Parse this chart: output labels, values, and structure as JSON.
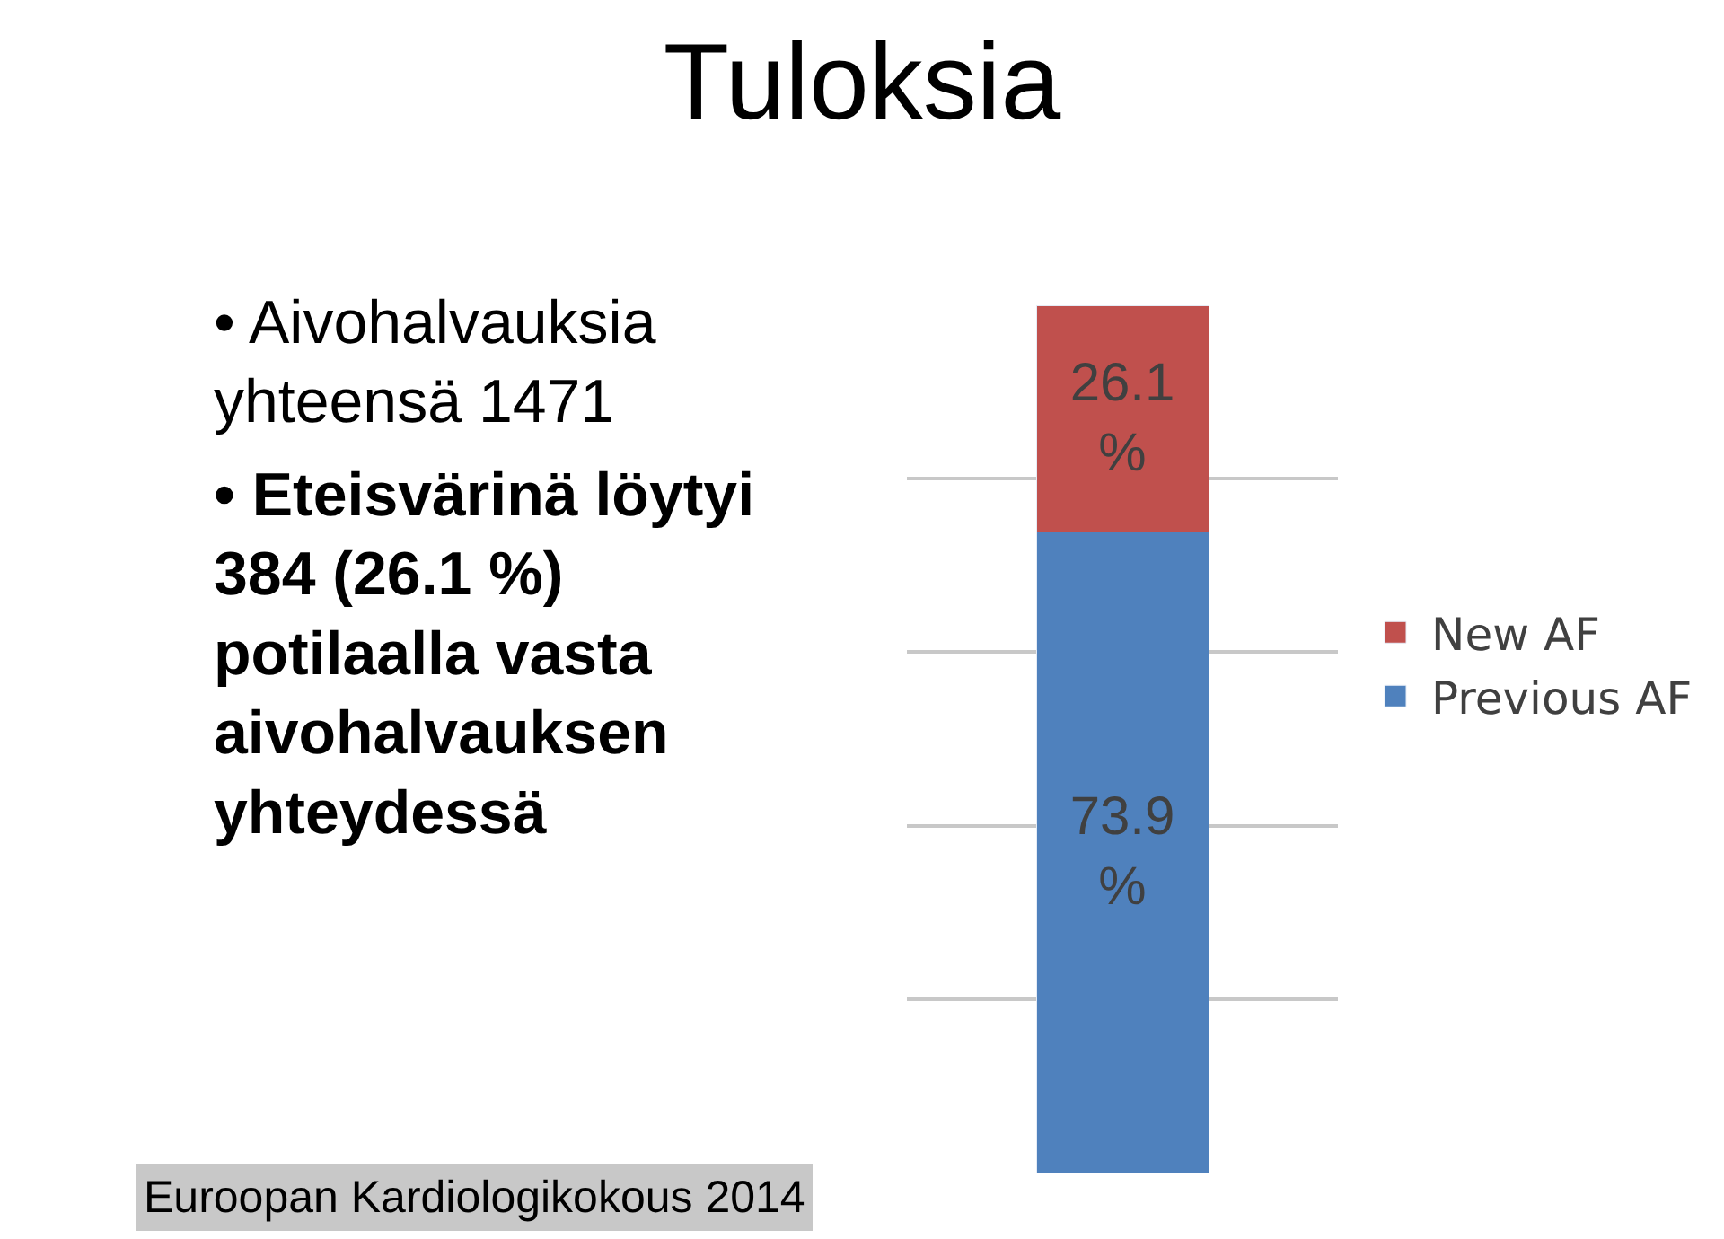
{
  "chart_data": {
    "type": "bar",
    "stacked": true,
    "title": "Tuloksia",
    "categories": [
      null
    ],
    "series": [
      {
        "name": "Previous AF",
        "color": "#4f81bd",
        "values": [
          73.9
        ],
        "value_labels": [
          "73.9\n%"
        ]
      },
      {
        "name": "New AF",
        "color": "#c0504d",
        "values": [
          26.1
        ],
        "value_labels": [
          "26.1\n%"
        ]
      }
    ],
    "ylim": [
      0,
      100
    ],
    "grid": "y",
    "legend": "right",
    "annotations": [
      "• Aivohalvauksia\nyhteensä 1471",
      "• Eteisvärinä löytyi\n384 (26.1 %)\npotilaalla vasta\naivohalvauksen\nyhteydessä",
      "Euroopan Kardiologikokous 2014"
    ]
  }
}
